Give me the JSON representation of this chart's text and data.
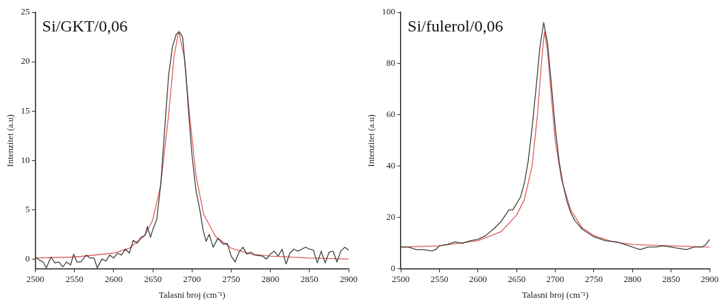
{
  "chart_data": [
    {
      "type": "line",
      "title": "Si/GKT/0,06",
      "xlabel": "Talasni broj (cm⁻¹)",
      "ylabel": "Intenzitet (a.u)",
      "xlim": [
        2500,
        2900
      ],
      "xticks": [
        2500,
        2550,
        2600,
        2650,
        2700,
        2750,
        2800,
        2850,
        2900
      ],
      "ylim": [
        -1,
        25
      ],
      "yticks": [
        0,
        5,
        10,
        15,
        20,
        25
      ],
      "grid": false,
      "legend": false,
      "marker": "none",
      "line_style": "solid",
      "series": [
        {
          "color": "#3a3f3a",
          "x": [
            2500,
            2505,
            2510,
            2514,
            2520,
            2525,
            2530,
            2535,
            2540,
            2545,
            2549,
            2553,
            2558,
            2565,
            2570,
            2575,
            2579,
            2585,
            2590,
            2595,
            2600,
            2605,
            2610,
            2615,
            2620,
            2625,
            2630,
            2635,
            2640,
            2643,
            2647,
            2650,
            2655,
            2660,
            2665,
            2670,
            2675,
            2680,
            2684,
            2688,
            2692,
            2696,
            2700,
            2705,
            2710,
            2714,
            2718,
            2722,
            2727,
            2733,
            2740,
            2745,
            2750,
            2755,
            2760,
            2765,
            2770,
            2775,
            2780,
            2790,
            2795,
            2800,
            2805,
            2810,
            2815,
            2820,
            2825,
            2830,
            2835,
            2840,
            2845,
            2850,
            2855,
            2860,
            2865,
            2870,
            2875,
            2880,
            2885,
            2890,
            2895,
            2900
          ],
          "values": [
            0.2,
            -0.1,
            -0.3,
            -0.9,
            0.2,
            -0.4,
            -0.3,
            -0.8,
            -0.3,
            -0.6,
            0.5,
            -0.3,
            -0.3,
            0.4,
            0.1,
            0.1,
            -0.9,
            0.0,
            -0.2,
            0.4,
            0.1,
            0.6,
            0.4,
            1.0,
            0.6,
            1.9,
            1.6,
            2.2,
            2.4,
            3.3,
            2.2,
            3.0,
            4.0,
            7.5,
            13,
            18.5,
            21.5,
            22.8,
            23.0,
            22.5,
            19,
            14.5,
            10.5,
            7.0,
            5.0,
            3.0,
            1.8,
            2.5,
            1.2,
            2.1,
            1.5,
            1.6,
            0.3,
            -0.3,
            0.7,
            1.2,
            0.5,
            0.7,
            0.4,
            0.3,
            0.0,
            0.5,
            0.8,
            0.3,
            1.0,
            -0.5,
            0.6,
            1.0,
            0.8,
            1.0,
            1.2,
            1.0,
            0.9,
            -0.4,
            0.8,
            -0.4,
            0.7,
            0.8,
            -0.3,
            0.8,
            1.2,
            0.9
          ]
        },
        {
          "color": "#e05a5a",
          "x": [
            2500,
            2550,
            2600,
            2620,
            2640,
            2650,
            2660,
            2670,
            2677,
            2683,
            2690,
            2697,
            2705,
            2715,
            2730,
            2750,
            2775,
            2800,
            2850,
            2900
          ],
          "values": [
            0.1,
            0.2,
            0.6,
            1.1,
            2.4,
            4.0,
            7.5,
            14.5,
            20.5,
            23.1,
            20.5,
            14.5,
            8.5,
            4.5,
            2.3,
            1.1,
            0.5,
            0.3,
            0.1,
            0.0
          ]
        }
      ]
    },
    {
      "type": "line",
      "title": "Si/fulerol/0,06",
      "xlabel": "Talasni broj (cm⁻¹)",
      "ylabel": "Intenzitet (a.u)",
      "xlim": [
        2500,
        2900
      ],
      "xticks": [
        2500,
        2550,
        2600,
        2650,
        2700,
        2750,
        2800,
        2850,
        2900
      ],
      "ylim": [
        0,
        100
      ],
      "yticks": [
        0,
        20,
        40,
        60,
        80,
        100
      ],
      "grid": false,
      "legend": false,
      "marker": "none",
      "line_style": "solid",
      "series": [
        {
          "color": "#3a3f3a",
          "x": [
            2500,
            2510,
            2520,
            2530,
            2540,
            2545,
            2550,
            2560,
            2570,
            2580,
            2590,
            2600,
            2610,
            2620,
            2630,
            2640,
            2645,
            2650,
            2655,
            2660,
            2665,
            2670,
            2675,
            2680,
            2685,
            2690,
            2695,
            2700,
            2705,
            2710,
            2715,
            2720,
            2725,
            2735,
            2750,
            2765,
            2780,
            2790,
            2800,
            2810,
            2820,
            2830,
            2840,
            2850,
            2860,
            2870,
            2880,
            2890,
            2895,
            2900
          ],
          "values": [
            8.5,
            8.5,
            7.5,
            7.5,
            7.0,
            7.5,
            9.0,
            9.5,
            10.5,
            10.0,
            11.0,
            11.5,
            13.0,
            15.5,
            18.5,
            23.0,
            23.0,
            25.5,
            28,
            33.5,
            42,
            55,
            70,
            86,
            96,
            88,
            72,
            55,
            42,
            33,
            26.5,
            22,
            19,
            15.5,
            12.5,
            11.0,
            10.5,
            9.5,
            8.5,
            7.5,
            8.5,
            8.5,
            9.0,
            8.5,
            8.0,
            7.5,
            8.5,
            8.5,
            9.5,
            11.5
          ]
        },
        {
          "color": "#e05a5a",
          "x": [
            2500,
            2550,
            2600,
            2630,
            2650,
            2660,
            2670,
            2677,
            2682,
            2686,
            2690,
            2695,
            2700,
            2708,
            2720,
            2735,
            2750,
            2775,
            2800,
            2850,
            2900
          ],
          "values": [
            8.5,
            9.0,
            11.0,
            14.5,
            21,
            27,
            40,
            60,
            80,
            92.5,
            85,
            67,
            50,
            35,
            23,
            16,
            13,
            10.5,
            9.5,
            9.0,
            8.5
          ]
        }
      ]
    }
  ]
}
